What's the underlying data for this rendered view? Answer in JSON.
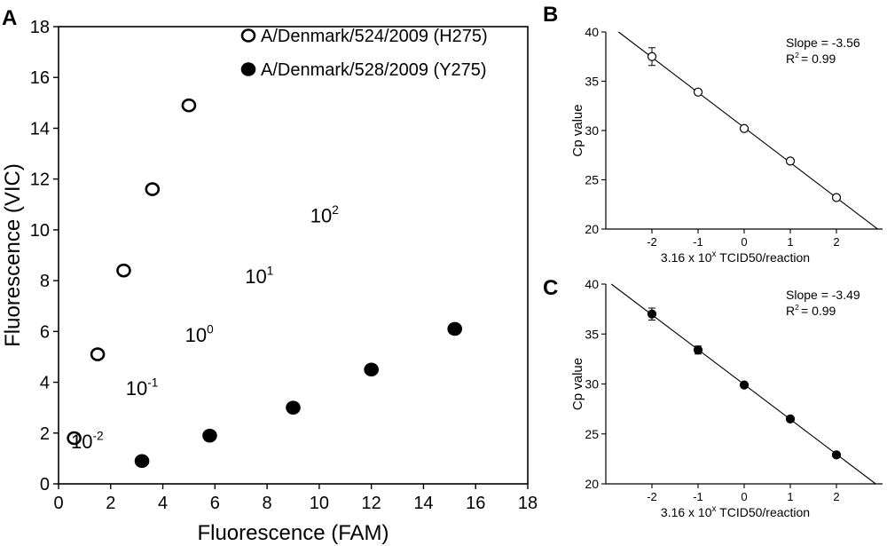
{
  "chart_data": [
    {
      "panel": "A",
      "type": "scatter",
      "xlabel": "Fluorescence (FAM)",
      "ylabel": "Fluorescence (VIC)",
      "xlim": [
        0,
        18
      ],
      "ylim": [
        0,
        18
      ],
      "xticks": [
        "0",
        "2",
        "4",
        "6",
        "8",
        "10",
        "12",
        "14",
        "16",
        "18"
      ],
      "yticks": [
        "0",
        "2",
        "4",
        "6",
        "8",
        "10",
        "12",
        "14",
        "16",
        "18"
      ],
      "legend_position": "top-right",
      "series": [
        {
          "name": "A/Denmark/524/2009 (H275)",
          "marker": "open-circle",
          "x": [
            0.6,
            1.5,
            2.5,
            3.6,
            5.0
          ],
          "y": [
            1.8,
            5.1,
            8.4,
            11.6,
            14.9
          ]
        },
        {
          "name": "A/Denmark/528/2009 (Y275)",
          "marker": "filled-circle",
          "x": [
            3.2,
            5.8,
            9.0,
            12.0,
            15.2
          ],
          "y": [
            0.9,
            1.9,
            3.0,
            4.5,
            6.1
          ]
        }
      ],
      "annotations": [
        {
          "base": "10",
          "exp": "-2",
          "x": 1.1,
          "y": 1.4
        },
        {
          "base": "10",
          "exp": "-1",
          "x": 3.2,
          "y": 3.5
        },
        {
          "base": "10",
          "exp": "0",
          "x": 5.4,
          "y": 5.6
        },
        {
          "base": "10",
          "exp": "1",
          "x": 7.7,
          "y": 7.9
        },
        {
          "base": "10",
          "exp": "2",
          "x": 10.2,
          "y": 10.3
        }
      ]
    },
    {
      "panel": "B",
      "type": "scatter",
      "xlabel_prefix": "3.16 x 10",
      "xlabel_sup": "x",
      "xlabel_suffix": " TCID50/reaction",
      "ylabel": "Cp value",
      "xlim": [
        -3,
        3
      ],
      "ylim": [
        20,
        40
      ],
      "xticks": [
        "-2",
        "-1",
        "0",
        "1",
        "2"
      ],
      "yticks": [
        "20",
        "25",
        "30",
        "35",
        "40"
      ],
      "marker": "open-circle",
      "x": [
        -2,
        -1,
        0,
        1,
        2
      ],
      "y": [
        37.5,
        33.9,
        30.2,
        26.9,
        23.2
      ],
      "err": [
        0.9,
        0.2,
        0.2,
        0.2,
        0.2
      ],
      "fit": {
        "slope": -3.56,
        "intercept": 30.3
      },
      "stats": {
        "slope_text": "Slope = -3.56",
        "r2_text": "= 0.99"
      }
    },
    {
      "panel": "C",
      "type": "scatter",
      "xlabel_prefix": "3.16 x 10",
      "xlabel_sup": "x",
      "xlabel_suffix": " TCID50/reaction",
      "ylabel": "Cp value",
      "xlim": [
        -3,
        3
      ],
      "ylim": [
        20,
        40
      ],
      "xticks": [
        "-2",
        "-1",
        "0",
        "1",
        "2"
      ],
      "yticks": [
        "20",
        "25",
        "30",
        "35",
        "40"
      ],
      "marker": "filled-circle",
      "x": [
        -2,
        -1,
        0,
        1,
        2
      ],
      "y": [
        37.0,
        33.4,
        29.9,
        26.5,
        22.9
      ],
      "err": [
        0.6,
        0.4,
        0.2,
        0.2,
        0.2
      ],
      "fit": {
        "slope": -3.49,
        "intercept": 29.95
      },
      "stats": {
        "slope_text": "Slope = -3.49",
        "r2_text": "= 0.99"
      }
    }
  ]
}
